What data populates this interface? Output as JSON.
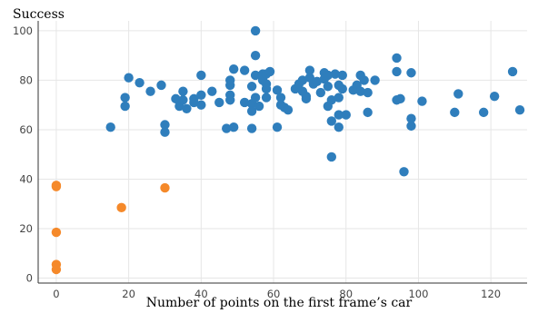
{
  "chart_data": {
    "type": "scatter",
    "title": "",
    "xlabel": "Number of points on the first frame’s car",
    "ylabel": "Success",
    "xlim": [
      -5,
      130
    ],
    "ylim": [
      -2,
      104
    ],
    "xticks": [
      0,
      20,
      40,
      60,
      80,
      100,
      120
    ],
    "yticks": [
      0,
      20,
      40,
      60,
      80,
      100
    ],
    "grid": true,
    "legend": "none",
    "series": [
      {
        "color": "#2f7ebc",
        "points": [
          [
            15,
            61
          ],
          [
            19,
            73
          ],
          [
            19,
            69.5
          ],
          [
            20,
            81
          ],
          [
            23,
            79
          ],
          [
            26,
            75.5
          ],
          [
            29,
            78
          ],
          [
            30,
            62
          ],
          [
            30,
            59
          ],
          [
            33,
            72.5
          ],
          [
            34,
            69.5
          ],
          [
            35,
            75.5
          ],
          [
            35,
            72
          ],
          [
            36,
            68.5
          ],
          [
            38,
            72.5
          ],
          [
            38,
            71
          ],
          [
            40,
            70
          ],
          [
            40,
            82
          ],
          [
            40,
            74
          ],
          [
            43,
            75.5
          ],
          [
            45,
            71
          ],
          [
            47,
            60.5
          ],
          [
            48,
            78
          ],
          [
            48,
            80
          ],
          [
            48,
            74
          ],
          [
            48,
            72
          ],
          [
            49,
            84.5
          ],
          [
            49,
            61
          ],
          [
            52,
            71
          ],
          [
            52,
            84
          ],
          [
            54,
            60.5
          ],
          [
            54,
            77.5
          ],
          [
            54,
            70.5
          ],
          [
            54,
            67.5
          ],
          [
            55,
            100
          ],
          [
            55,
            90
          ],
          [
            55,
            82
          ],
          [
            55,
            73
          ],
          [
            56,
            69.5
          ],
          [
            57,
            82.5
          ],
          [
            57,
            80
          ],
          [
            58,
            82.5
          ],
          [
            58,
            78.5
          ],
          [
            58,
            76.5
          ],
          [
            58,
            73
          ],
          [
            59,
            83.5
          ],
          [
            61,
            61
          ],
          [
            61,
            76
          ],
          [
            62,
            73
          ],
          [
            62,
            70
          ],
          [
            63,
            69
          ],
          [
            64,
            68
          ],
          [
            66,
            76.5
          ],
          [
            67,
            78.5
          ],
          [
            68,
            80
          ],
          [
            68,
            75.5
          ],
          [
            69,
            73.5
          ],
          [
            69,
            72.5
          ],
          [
            70,
            84
          ],
          [
            70,
            81
          ],
          [
            71,
            78.5
          ],
          [
            72,
            79.5
          ],
          [
            73,
            75
          ],
          [
            74,
            83
          ],
          [
            74,
            80.5
          ],
          [
            75,
            77.5
          ],
          [
            75,
            69.5
          ],
          [
            75,
            82
          ],
          [
            76,
            72
          ],
          [
            76,
            63.5
          ],
          [
            76,
            49
          ],
          [
            77,
            82.5
          ],
          [
            78,
            78
          ],
          [
            78,
            73
          ],
          [
            78,
            66
          ],
          [
            78,
            61
          ],
          [
            79,
            82
          ],
          [
            79,
            76.5
          ],
          [
            80,
            66
          ],
          [
            82,
            76
          ],
          [
            83,
            78
          ],
          [
            84,
            82
          ],
          [
            84,
            75.5
          ],
          [
            85,
            80
          ],
          [
            86,
            75
          ],
          [
            86,
            67
          ],
          [
            88,
            80
          ],
          [
            94,
            89
          ],
          [
            94,
            83.5
          ],
          [
            94,
            72
          ],
          [
            95,
            72.5
          ],
          [
            96,
            43
          ],
          [
            98,
            83
          ],
          [
            98,
            64.5
          ],
          [
            98,
            61.5
          ],
          [
            101,
            71.5
          ],
          [
            110,
            67
          ],
          [
            111,
            74.5
          ],
          [
            118,
            67
          ],
          [
            121,
            73.5
          ],
          [
            126,
            83.5
          ],
          [
            128,
            68
          ]
        ]
      },
      {
        "color": "#f5892a",
        "points": [
          [
            0,
            37.5
          ],
          [
            0,
            37
          ],
          [
            0,
            18.5
          ],
          [
            0,
            5.5
          ],
          [
            0,
            3.5
          ],
          [
            18,
            28.5
          ],
          [
            30,
            36.5
          ]
        ]
      }
    ]
  }
}
